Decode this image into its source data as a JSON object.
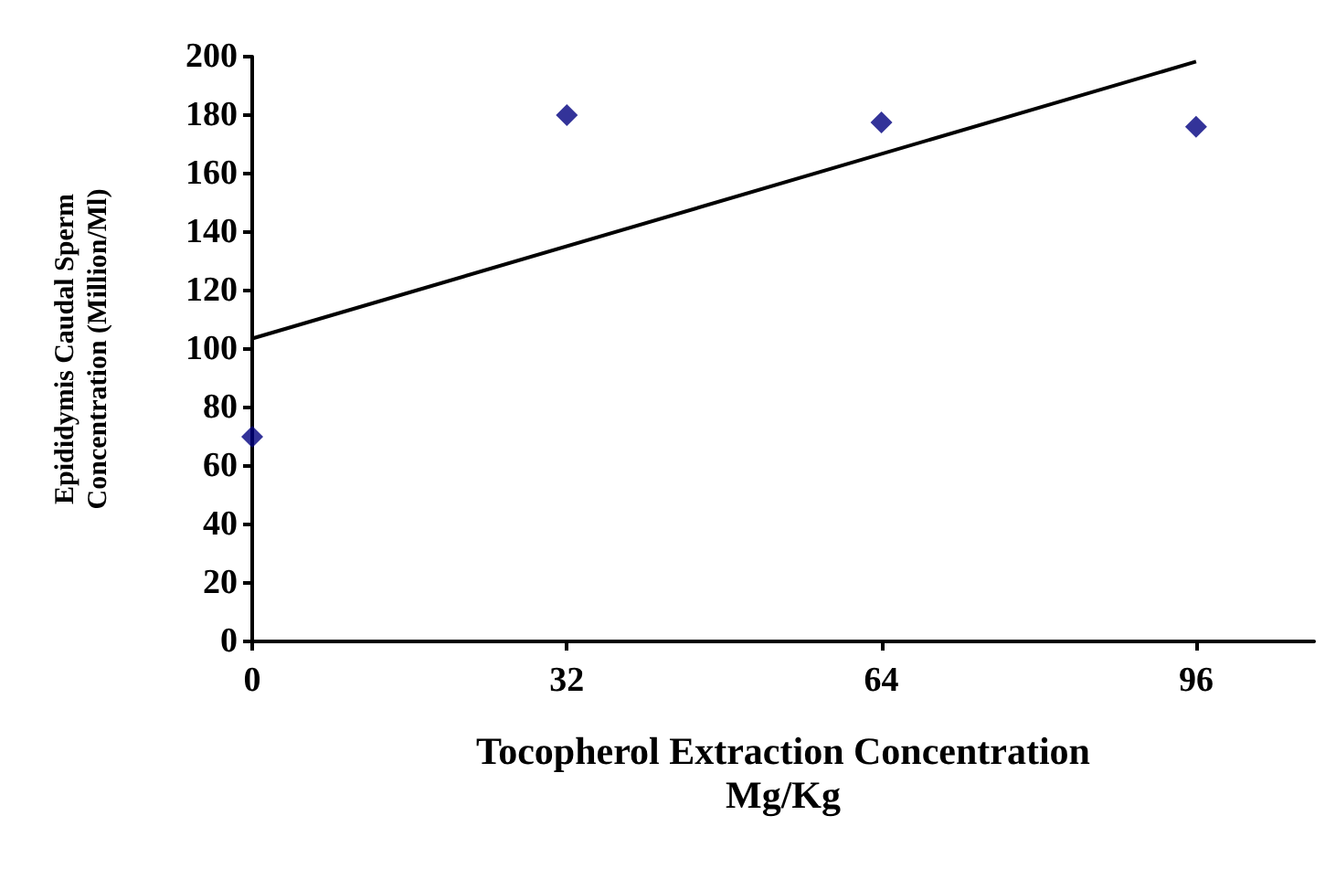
{
  "chart_data": {
    "type": "scatter",
    "xlabel": "Tocopherol Extraction Concentration\nMg/Kg",
    "ylabel": "Epididymis Caudal Sperm\nConcentration (Million/Ml)",
    "xlim": [
      0,
      108
    ],
    "xticks": [
      0,
      32,
      64,
      96
    ],
    "ylim": [
      0,
      200
    ],
    "yticks": [
      0,
      20,
      40,
      60,
      80,
      100,
      120,
      140,
      160,
      180,
      200
    ],
    "grid": false,
    "series": [
      {
        "marker": "diamond",
        "color": "#000080",
        "x": [
          0,
          32,
          64,
          96
        ],
        "values": [
          70,
          180,
          177.5,
          176
        ]
      },
      {
        "type": "line",
        "marker": "none",
        "color": "#000000",
        "x": [
          0,
          96
        ],
        "values": [
          103.6,
          198.3
        ]
      }
    ]
  }
}
